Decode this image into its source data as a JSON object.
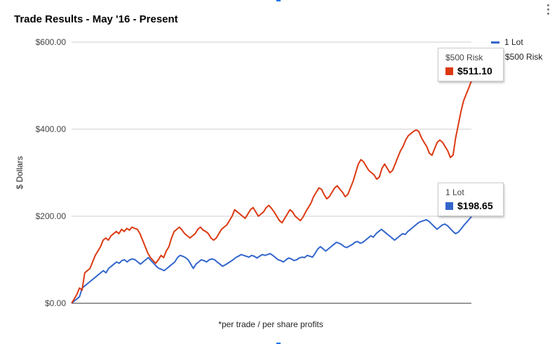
{
  "chart_data": {
    "type": "line",
    "title": "Trade Results - May '16 - Present",
    "ylabel": "$ Dollars",
    "xlabel": "",
    "footnote": "*per trade / per share profits",
    "ylim": [
      0,
      600
    ],
    "yticks": [
      "$0.00",
      "$200.00",
      "$400.00",
      "$600.00"
    ],
    "ytick_values": [
      0,
      200,
      400,
      600
    ],
    "grid": true,
    "legend_position": "right",
    "series": [
      {
        "name": "1 Lot",
        "color": "#3366cc",
        "values": [
          0,
          5,
          10,
          15,
          35,
          40,
          45,
          50,
          55,
          60,
          65,
          70,
          75,
          70,
          80,
          85,
          90,
          95,
          92,
          98,
          100,
          95,
          100,
          102,
          100,
          95,
          90,
          95,
          100,
          105,
          98,
          92,
          85,
          80,
          78,
          75,
          80,
          85,
          90,
          95,
          105,
          110,
          108,
          105,
          100,
          90,
          80,
          90,
          95,
          100,
          98,
          95,
          100,
          102,
          100,
          95,
          90,
          85,
          88,
          92,
          96,
          100,
          105,
          108,
          112,
          110,
          108,
          106,
          110,
          108,
          104,
          108,
          112,
          110,
          112,
          114,
          110,
          105,
          100,
          98,
          95,
          100,
          104,
          102,
          98,
          100,
          104,
          106,
          105,
          110,
          108,
          106,
          115,
          125,
          130,
          125,
          120,
          125,
          130,
          135,
          140,
          138,
          135,
          130,
          128,
          132,
          135,
          140,
          142,
          138,
          140,
          145,
          150,
          155,
          152,
          160,
          165,
          170,
          165,
          160,
          155,
          150,
          145,
          150,
          155,
          160,
          158,
          165,
          170,
          175,
          180,
          185,
          188,
          190,
          192,
          188,
          182,
          176,
          170,
          175,
          180,
          182,
          178,
          172,
          165,
          160,
          163,
          170,
          178,
          185,
          192,
          198.65
        ],
        "tooltip_name": "1 Lot",
        "tooltip_value": "$198.65"
      },
      {
        "name": "$500 Risk",
        "color": "#dc3912",
        "values": [
          0,
          10,
          20,
          35,
          30,
          70,
          75,
          80,
          95,
          110,
          120,
          130,
          145,
          150,
          145,
          155,
          160,
          165,
          160,
          170,
          165,
          172,
          168,
          175,
          172,
          170,
          160,
          145,
          130,
          115,
          105,
          98,
          92,
          100,
          110,
          105,
          120,
          130,
          150,
          165,
          170,
          175,
          168,
          160,
          155,
          150,
          155,
          160,
          170,
          175,
          168,
          165,
          160,
          150,
          145,
          150,
          160,
          170,
          175,
          180,
          190,
          200,
          215,
          210,
          205,
          200,
          195,
          205,
          215,
          220,
          210,
          200,
          205,
          210,
          220,
          225,
          218,
          210,
          200,
          190,
          185,
          195,
          205,
          215,
          210,
          200,
          195,
          190,
          198,
          210,
          220,
          230,
          245,
          255,
          265,
          262,
          250,
          240,
          245,
          255,
          265,
          270,
          262,
          255,
          245,
          250,
          265,
          280,
          300,
          320,
          330,
          325,
          315,
          305,
          300,
          295,
          285,
          290,
          310,
          320,
          310,
          300,
          305,
          320,
          335,
          350,
          360,
          375,
          385,
          390,
          395,
          398,
          395,
          380,
          370,
          360,
          345,
          340,
          355,
          370,
          375,
          370,
          360,
          350,
          335,
          340,
          380,
          410,
          440,
          465,
          480,
          495,
          511.1
        ],
        "tooltip_name": "$500 Risk",
        "tooltip_value": "$511.10"
      }
    ]
  }
}
